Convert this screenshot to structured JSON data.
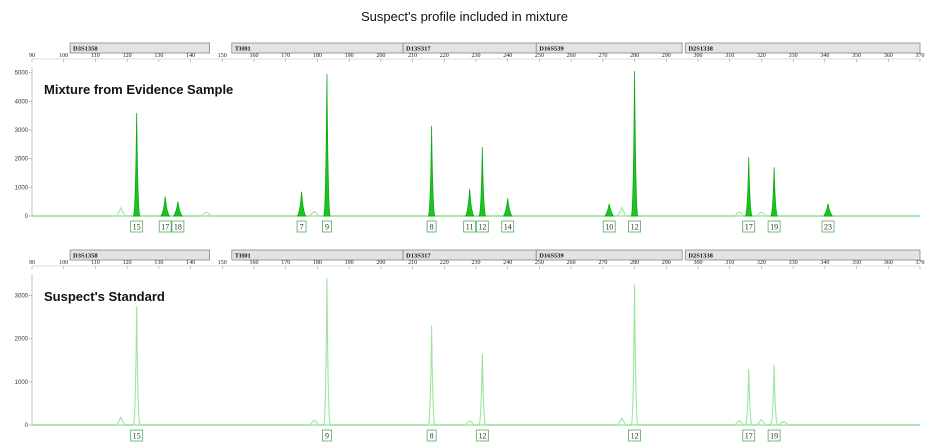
{
  "title": "Suspect's profile included in mixture",
  "colors": {
    "peak_fill": "#19c61e",
    "peak_stroke": "#0fa814",
    "trace_light": "#9fe39f",
    "baseline": "#7fd67f",
    "label_box": "#4caf50",
    "locus_bar": "#e3e3e3"
  },
  "chart_data": [
    {
      "type": "line",
      "title": "Mixture from Evidence Sample",
      "x_axis": {
        "range": [
          90,
          370
        ],
        "ticks": [
          90,
          100,
          110,
          120,
          130,
          140,
          150,
          160,
          170,
          180,
          190,
          200,
          210,
          220,
          230,
          240,
          250,
          260,
          270,
          280,
          290,
          300,
          310,
          320,
          330,
          340,
          350,
          360,
          370
        ]
      },
      "y_axis": {
        "range": [
          0,
          5200
        ],
        "ticks": [
          0,
          1000,
          2000,
          3000,
          4000,
          5000
        ]
      },
      "loci": [
        {
          "name": "D3S1358",
          "start": 102,
          "end": 146
        },
        {
          "name": "TH01",
          "start": 153,
          "end": 207
        },
        {
          "name": "D13S317",
          "start": 207,
          "end": 249
        },
        {
          "name": "D16S539",
          "start": 249,
          "end": 295
        },
        {
          "name": "D2S1338",
          "start": 296,
          "end": 370
        }
      ],
      "style": "filled",
      "peaks": [
        {
          "x": 118,
          "height": 280,
          "label": ""
        },
        {
          "x": 123,
          "height": 3600,
          "label": "15"
        },
        {
          "x": 132,
          "height": 680,
          "label": "17"
        },
        {
          "x": 136,
          "height": 500,
          "label": "18"
        },
        {
          "x": 145,
          "height": 120,
          "label": ""
        },
        {
          "x": 175,
          "height": 850,
          "label": "7"
        },
        {
          "x": 179,
          "height": 150,
          "label": ""
        },
        {
          "x": 183,
          "height": 4950,
          "label": "9"
        },
        {
          "x": 216,
          "height": 3150,
          "label": "8"
        },
        {
          "x": 228,
          "height": 950,
          "label": "11"
        },
        {
          "x": 232,
          "height": 2400,
          "label": "12"
        },
        {
          "x": 240,
          "height": 620,
          "label": "14"
        },
        {
          "x": 272,
          "height": 420,
          "label": "10"
        },
        {
          "x": 276,
          "height": 290,
          "label": ""
        },
        {
          "x": 280,
          "height": 5050,
          "label": "12"
        },
        {
          "x": 313,
          "height": 130,
          "label": ""
        },
        {
          "x": 316,
          "height": 2050,
          "label": "17"
        },
        {
          "x": 320,
          "height": 120,
          "label": ""
        },
        {
          "x": 324,
          "height": 1700,
          "label": "19"
        },
        {
          "x": 341,
          "height": 430,
          "label": "23"
        }
      ]
    },
    {
      "type": "line",
      "title": "Suspect's Standard",
      "x_axis": {
        "range": [
          90,
          370
        ],
        "ticks": [
          90,
          100,
          110,
          120,
          130,
          140,
          150,
          160,
          170,
          180,
          190,
          200,
          210,
          220,
          230,
          240,
          250,
          260,
          270,
          280,
          290,
          300,
          310,
          320,
          330,
          340,
          350,
          360,
          370
        ]
      },
      "y_axis": {
        "range": [
          0,
          3500
        ],
        "ticks": [
          0,
          1000,
          2000,
          3000
        ]
      },
      "loci": [
        {
          "name": "D3S1358",
          "start": 102,
          "end": 146
        },
        {
          "name": "TH01",
          "start": 153,
          "end": 207
        },
        {
          "name": "D13S317",
          "start": 207,
          "end": 249
        },
        {
          "name": "D16S539",
          "start": 249,
          "end": 295
        },
        {
          "name": "D2S1338",
          "start": 296,
          "end": 370
        }
      ],
      "style": "outline",
      "peaks": [
        {
          "x": 118,
          "height": 180,
          "label": ""
        },
        {
          "x": 123,
          "height": 2750,
          "label": "15"
        },
        {
          "x": 179,
          "height": 110,
          "label": ""
        },
        {
          "x": 183,
          "height": 3400,
          "label": "9"
        },
        {
          "x": 216,
          "height": 2300,
          "label": "8"
        },
        {
          "x": 228,
          "height": 90,
          "label": ""
        },
        {
          "x": 232,
          "height": 1650,
          "label": "12"
        },
        {
          "x": 276,
          "height": 160,
          "label": ""
        },
        {
          "x": 280,
          "height": 3250,
          "label": "12"
        },
        {
          "x": 313,
          "height": 100,
          "label": ""
        },
        {
          "x": 316,
          "height": 1300,
          "label": "17"
        },
        {
          "x": 320,
          "height": 120,
          "label": ""
        },
        {
          "x": 324,
          "height": 1400,
          "label": "19"
        },
        {
          "x": 327,
          "height": 60,
          "label": ""
        }
      ]
    }
  ]
}
